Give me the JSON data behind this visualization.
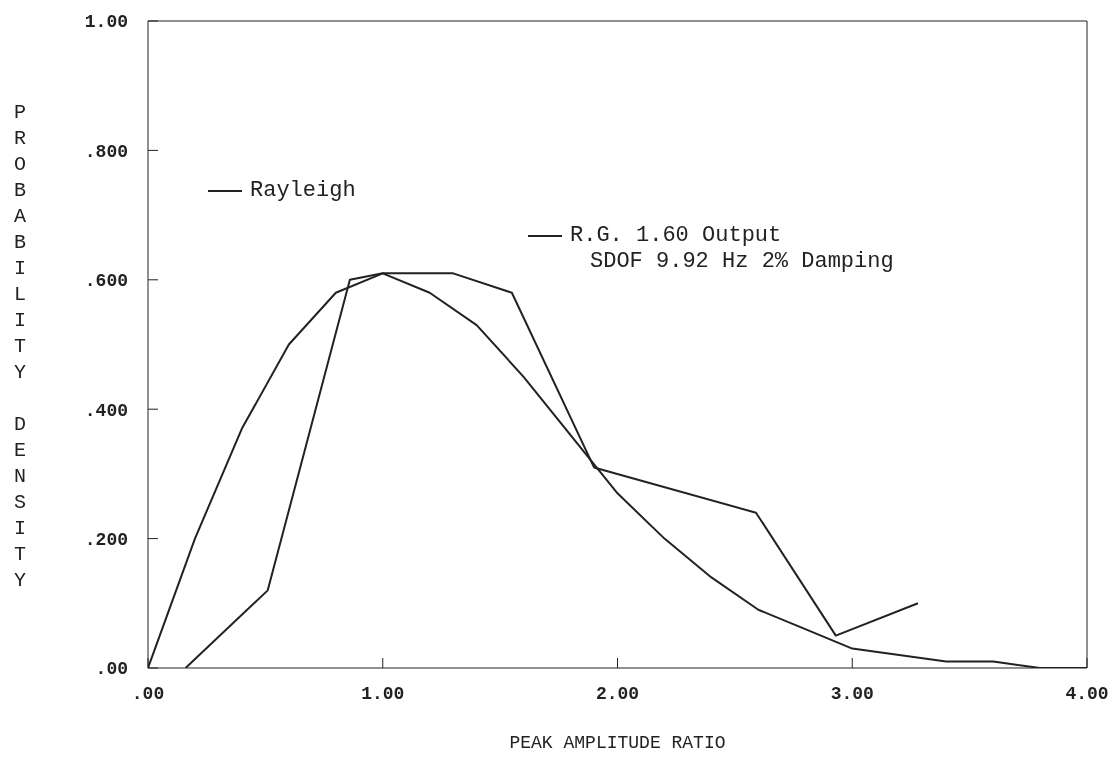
{
  "chart_data": {
    "type": "line",
    "xlabel": "PEAK AMPLITUDE RATIO",
    "ylabel": "PROBABILITY DENSITY",
    "xlim": [
      0,
      4
    ],
    "ylim": [
      0,
      1
    ],
    "xticks": [
      {
        "value": 0,
        "label": ".00"
      },
      {
        "value": 1,
        "label": "1.00"
      },
      {
        "value": 2,
        "label": "2.00"
      },
      {
        "value": 3,
        "label": "3.00"
      },
      {
        "value": 4,
        "label": "4.00"
      }
    ],
    "yticks": [
      {
        "value": 0,
        "label": ".00"
      },
      {
        "value": 0.2,
        "label": ".200"
      },
      {
        "value": 0.4,
        "label": ".400"
      },
      {
        "value": 0.6,
        "label": ".600"
      },
      {
        "value": 0.8,
        "label": ".800"
      },
      {
        "value": 1,
        "label": "1.00"
      }
    ],
    "legend": "top left",
    "marker": "none",
    "line_style": "solid",
    "series": [
      {
        "name": "Rayleigh",
        "color": "#222222",
        "x": [
          0,
          0.2,
          0.4,
          0.6,
          0.8,
          1.0,
          1.2,
          1.4,
          1.6,
          1.8,
          2.0,
          2.2,
          2.4,
          2.6,
          2.8,
          3.0,
          3.2,
          3.4,
          3.6,
          3.8,
          4.0
        ],
        "values": [
          0,
          0.2,
          0.37,
          0.5,
          0.58,
          0.61,
          0.58,
          0.53,
          0.45,
          0.36,
          0.27,
          0.2,
          0.14,
          0.09,
          0.06,
          0.03,
          0.02,
          0.01,
          0.01,
          0.0,
          0.0
        ]
      },
      {
        "name": "R.G. 1.60 Output\nSDOF 9.92 Hz 2% Damping",
        "color": "#222222",
        "x": [
          0.16,
          0.51,
          0.86,
          1.0,
          1.3,
          1.55,
          1.9,
          2.59,
          2.93,
          3.28
        ],
        "values": [
          0,
          0.12,
          0.6,
          0.61,
          0.61,
          0.58,
          0.31,
          0.24,
          0.05,
          0.1
        ]
      }
    ]
  }
}
